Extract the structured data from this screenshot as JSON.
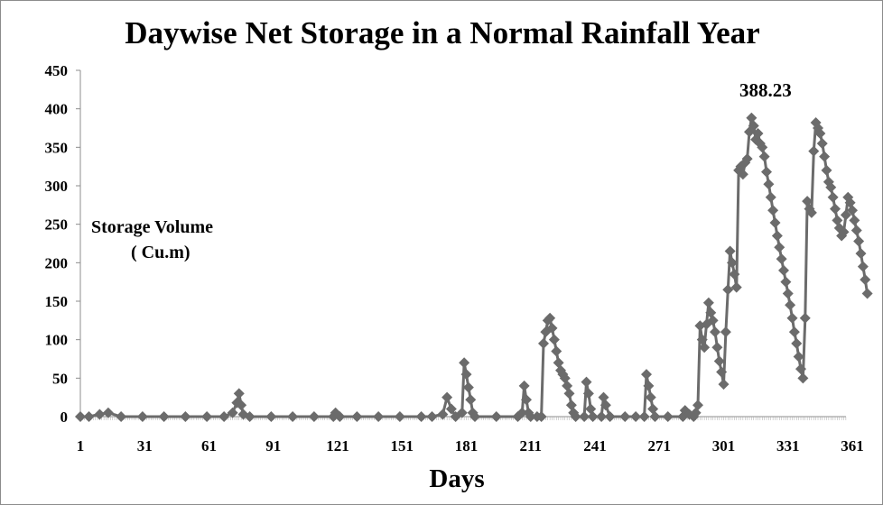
{
  "chart_data": {
    "type": "line",
    "title": "Daywise Net Storage in a Normal Rainfall Year",
    "xlabel": "Days",
    "ylabel_line1": "Storage Volume",
    "ylabel_line2": "( Cu.m)",
    "annotation": "388.23",
    "xlim": [
      1,
      365
    ],
    "ylim": [
      0,
      450
    ],
    "y_ticks": [
      0,
      50,
      100,
      150,
      200,
      250,
      300,
      350,
      400,
      450
    ],
    "x_ticks": [
      1,
      31,
      61,
      91,
      121,
      151,
      181,
      211,
      241,
      271,
      301,
      331,
      361
    ],
    "grid": false,
    "legend": "none",
    "series_color": "#6b6b6b",
    "series": [
      {
        "points": [
          [
            1,
            0
          ],
          [
            5,
            0
          ],
          [
            10,
            3
          ],
          [
            14,
            5
          ],
          [
            20,
            0
          ],
          [
            30,
            0
          ],
          [
            40,
            0
          ],
          [
            50,
            0
          ],
          [
            60,
            0
          ],
          [
            68,
            0
          ],
          [
            72,
            5
          ],
          [
            74,
            18
          ],
          [
            75,
            30
          ],
          [
            76,
            15
          ],
          [
            77,
            3
          ],
          [
            80,
            0
          ],
          [
            90,
            0
          ],
          [
            100,
            0
          ],
          [
            110,
            0
          ],
          [
            119,
            0
          ],
          [
            120,
            5
          ],
          [
            122,
            0
          ],
          [
            130,
            0
          ],
          [
            140,
            0
          ],
          [
            150,
            0
          ],
          [
            160,
            0
          ],
          [
            165,
            0
          ],
          [
            170,
            3
          ],
          [
            172,
            25
          ],
          [
            174,
            10
          ],
          [
            176,
            0
          ],
          [
            179,
            5
          ],
          [
            180,
            70
          ],
          [
            181,
            55
          ],
          [
            182,
            38
          ],
          [
            183,
            22
          ],
          [
            184,
            5
          ],
          [
            185,
            0
          ],
          [
            195,
            0
          ],
          [
            205,
            0
          ],
          [
            207,
            5
          ],
          [
            208,
            40
          ],
          [
            209,
            22
          ],
          [
            210,
            5
          ],
          [
            211,
            0
          ],
          [
            214,
            0
          ],
          [
            216,
            0
          ],
          [
            217,
            95
          ],
          [
            218,
            110
          ],
          [
            219,
            125
          ],
          [
            220,
            128
          ],
          [
            221,
            115
          ],
          [
            222,
            100
          ],
          [
            223,
            85
          ],
          [
            224,
            70
          ],
          [
            225,
            60
          ],
          [
            226,
            55
          ],
          [
            227,
            50
          ],
          [
            228,
            40
          ],
          [
            229,
            30
          ],
          [
            230,
            15
          ],
          [
            231,
            5
          ],
          [
            232,
            0
          ],
          [
            236,
            0
          ],
          [
            237,
            45
          ],
          [
            238,
            30
          ],
          [
            239,
            10
          ],
          [
            240,
            0
          ],
          [
            244,
            0
          ],
          [
            245,
            25
          ],
          [
            246,
            15
          ],
          [
            248,
            0
          ],
          [
            255,
            0
          ],
          [
            260,
            0
          ],
          [
            264,
            0
          ],
          [
            265,
            55
          ],
          [
            266,
            40
          ],
          [
            267,
            25
          ],
          [
            268,
            10
          ],
          [
            269,
            0
          ],
          [
            275,
            0
          ],
          [
            282,
            0
          ],
          [
            283,
            8
          ],
          [
            285,
            3
          ],
          [
            287,
            0
          ],
          [
            288,
            5
          ],
          [
            289,
            15
          ],
          [
            290,
            118
          ],
          [
            291,
            100
          ],
          [
            292,
            90
          ],
          [
            293,
            120
          ],
          [
            294,
            148
          ],
          [
            295,
            135
          ],
          [
            296,
            125
          ],
          [
            297,
            110
          ],
          [
            298,
            90
          ],
          [
            299,
            72
          ],
          [
            300,
            58
          ],
          [
            301,
            42
          ],
          [
            302,
            110
          ],
          [
            303,
            165
          ],
          [
            304,
            215
          ],
          [
            305,
            200
          ],
          [
            306,
            185
          ],
          [
            307,
            168
          ],
          [
            308,
            320
          ],
          [
            309,
            325
          ],
          [
            310,
            315
          ],
          [
            311,
            330
          ],
          [
            312,
            335
          ],
          [
            313,
            370
          ],
          [
            314,
            388.23
          ],
          [
            315,
            378
          ],
          [
            316,
            360
          ],
          [
            317,
            368
          ],
          [
            318,
            355
          ],
          [
            319,
            350
          ],
          [
            320,
            338
          ],
          [
            321,
            318
          ],
          [
            322,
            302
          ],
          [
            323,
            285
          ],
          [
            324,
            268
          ],
          [
            325,
            252
          ],
          [
            326,
            235
          ],
          [
            327,
            220
          ],
          [
            328,
            205
          ],
          [
            329,
            190
          ],
          [
            330,
            175
          ],
          [
            331,
            160
          ],
          [
            332,
            145
          ],
          [
            333,
            128
          ],
          [
            334,
            110
          ],
          [
            335,
            95
          ],
          [
            336,
            78
          ],
          [
            337,
            62
          ],
          [
            338,
            50
          ],
          [
            339,
            128
          ],
          [
            340,
            280
          ],
          [
            341,
            270
          ],
          [
            342,
            265
          ],
          [
            343,
            345
          ],
          [
            344,
            382
          ],
          [
            345,
            375
          ],
          [
            346,
            368
          ],
          [
            347,
            355
          ],
          [
            348,
            338
          ],
          [
            349,
            320
          ],
          [
            350,
            305
          ],
          [
            351,
            298
          ],
          [
            352,
            285
          ],
          [
            353,
            270
          ],
          [
            354,
            255
          ],
          [
            355,
            245
          ],
          [
            356,
            235
          ],
          [
            357,
            240
          ],
          [
            358,
            262
          ],
          [
            359,
            285
          ],
          [
            360,
            278
          ],
          [
            361,
            268
          ],
          [
            362,
            255
          ],
          [
            363,
            242
          ],
          [
            364,
            228
          ],
          [
            365,
            212
          ],
          [
            366,
            195
          ],
          [
            367,
            178
          ],
          [
            368,
            160
          ]
        ]
      }
    ]
  }
}
